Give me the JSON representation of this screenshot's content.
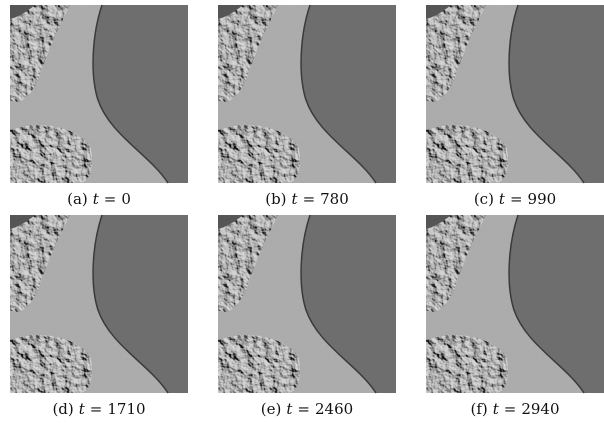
{
  "panels": [
    {
      "tag": "(a)",
      "variable": "t",
      "sign": "=",
      "time": 0
    },
    {
      "tag": "(b)",
      "variable": "t",
      "sign": "=",
      "time": 780
    },
    {
      "tag": "(c)",
      "variable": "t",
      "sign": "=",
      "time": 990
    },
    {
      "tag": "(d)",
      "variable": "t",
      "sign": "=",
      "time": 1710
    },
    {
      "tag": "(e)",
      "variable": "t",
      "sign": "=",
      "time": 2460
    },
    {
      "tag": "(f)",
      "variable": "t",
      "sign": "=",
      "time": 2940
    }
  ]
}
